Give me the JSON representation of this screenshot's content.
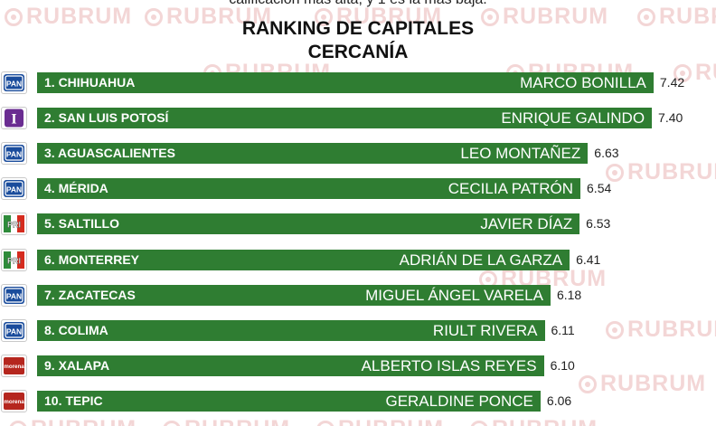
{
  "header": {
    "partial_top_text": "calificación más alta, y 1 es la más baja."
  },
  "watermark": "RUBRUM",
  "chart_data": {
    "type": "bar",
    "orientation": "horizontal",
    "title": "RANKING DE CAPITALES",
    "subtitle": "CERCANÍA",
    "bar_color": "#2f7d32",
    "xlim": [
      0,
      10
    ],
    "categories": [
      "1. CHIHUAHUA",
      "2. SAN LUIS POTOSÍ",
      "3. AGUASCALIENTES",
      "4. MÉRIDA",
      "5. SALTILLO",
      "6. MONTERREY",
      "7. ZACATECAS",
      "8. COLIMA",
      "9. XALAPA",
      "10. TEPIC"
    ],
    "mayors": [
      "MARCO BONILLA",
      "ENRIQUE GALINDO",
      "LEO MONTAÑEZ",
      "CECILIA PATRÓN",
      "JAVIER DÍAZ",
      "ADRIÁN DE LA GARZA",
      "MIGUEL ÁNGEL VARELA",
      "RIULT RIVERA",
      "ALBERTO ISLAS REYES",
      "GERALDINE PONCE"
    ],
    "values": [
      7.42,
      7.4,
      6.63,
      6.54,
      6.53,
      6.41,
      6.18,
      6.11,
      6.1,
      6.06
    ],
    "value_labels": [
      "7.42",
      "7.40",
      "6.63",
      "6.54",
      "6.53",
      "6.41",
      "6.18",
      "6.11",
      "6.10",
      "6.06"
    ],
    "parties": [
      {
        "name": "pan-logo",
        "text": "PAN"
      },
      {
        "name": "independent-logo",
        "text": "I"
      },
      {
        "name": "pan-logo",
        "text": "PAN"
      },
      {
        "name": "pan-logo",
        "text": "PAN"
      },
      {
        "name": "pri-logo",
        "text": "PRI"
      },
      {
        "name": "pri-logo",
        "text": "PRI"
      },
      {
        "name": "pan-logo",
        "text": "PAN"
      },
      {
        "name": "pan-logo",
        "text": "PAN"
      },
      {
        "name": "morena-logo",
        "text": "morena"
      },
      {
        "name": "morena-logo",
        "text": "morena"
      }
    ],
    "party_colors": {
      "PAN": "#1a4c9c",
      "I": "#6a2c91",
      "PRI_green": "#2e8b3a",
      "PRI_red": "#d52b1e",
      "morena": "#b5261e"
    }
  }
}
